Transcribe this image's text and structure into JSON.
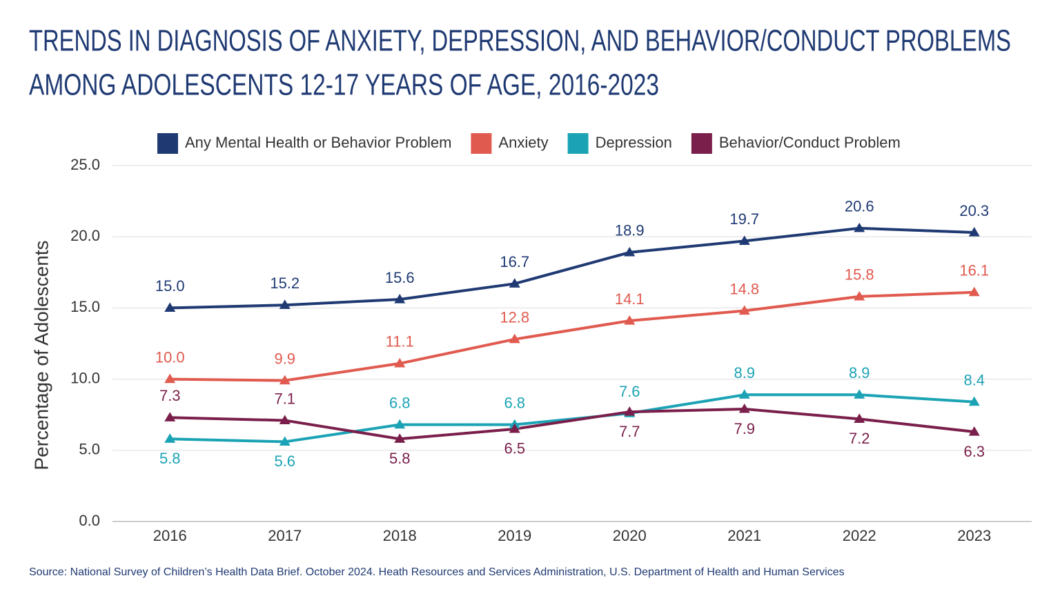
{
  "chart_data": {
    "type": "line",
    "title": [
      "TRENDS IN DIAGNOSIS OF ANXIETY, DEPRESSION, AND BEHAVIOR/CONDUCT PROBLEMS",
      "AMONG ADOLESCENTS 12-17 YEARS OF AGE, 2016-2023"
    ],
    "y_label": "Percentage of Adolescents",
    "source": "Source: National Survey of Children’s Health Data Brief. October 2024. Heath Resources and Services Administration, U.S. Department of Health and Human Services",
    "categories": [
      "2016",
      "2017",
      "2018",
      "2019",
      "2020",
      "2021",
      "2022",
      "2023"
    ],
    "series": [
      {
        "name": "Any Mental Health or Behavior Problem",
        "color": "#1f3a73",
        "values": [
          15.0,
          15.2,
          15.6,
          16.7,
          18.9,
          19.7,
          20.6,
          20.3
        ],
        "value_labels": [
          "15.0",
          "15.2",
          "15.6",
          "16.7",
          "18.9",
          "19.7",
          "20.6",
          "20.3"
        ]
      },
      {
        "name": "Anxiety",
        "color": "#e05a4f",
        "values": [
          10.0,
          9.9,
          11.1,
          12.8,
          14.1,
          14.8,
          15.8,
          16.1
        ],
        "value_labels": [
          "10.0",
          "9.9",
          "11.1",
          "12.8",
          "14.1",
          "14.8",
          "15.8",
          "16.1"
        ]
      },
      {
        "name": "Depression",
        "color": "#1ba3b5",
        "values": [
          5.8,
          5.6,
          6.8,
          6.8,
          7.6,
          8.9,
          8.9,
          8.4
        ],
        "value_labels": [
          "5.8",
          "5.6",
          "6.8",
          "6.8",
          "7.6",
          "8.9",
          "8.9",
          "8.4"
        ]
      },
      {
        "name": "Behavior/Conduct Problem",
        "color": "#7a1f4b",
        "values": [
          7.3,
          7.1,
          5.8,
          6.5,
          7.7,
          7.9,
          7.2,
          6.3
        ],
        "value_labels": [
          "7.3",
          "7.1",
          "5.8",
          "6.5",
          "7.7",
          "7.9",
          "7.2",
          "6.3"
        ]
      }
    ],
    "ylim": [
      0,
      25
    ],
    "yticks": [
      {
        "value": 0,
        "label": "0.0"
      },
      {
        "value": 5,
        "label": "5.0"
      },
      {
        "value": 10,
        "label": "10.0"
      },
      {
        "value": 15,
        "label": "15.0"
      },
      {
        "value": 20,
        "label": "20.0"
      },
      {
        "value": 25,
        "label": "25.0"
      }
    ],
    "grid": true,
    "legend": "top"
  }
}
